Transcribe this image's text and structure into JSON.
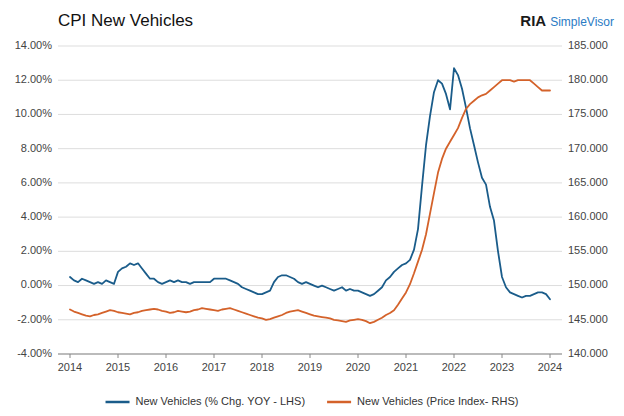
{
  "chart_data": {
    "type": "line",
    "title": "CPI New Vehicles",
    "annotations": [
      "RIA",
      "SimpleVisor"
    ],
    "x": [
      2014.0,
      2014.083,
      2014.167,
      2014.25,
      2014.333,
      2014.417,
      2014.5,
      2014.583,
      2014.667,
      2014.75,
      2014.833,
      2014.917,
      2015.0,
      2015.083,
      2015.167,
      2015.25,
      2015.333,
      2015.417,
      2015.5,
      2015.583,
      2015.667,
      2015.75,
      2015.833,
      2015.917,
      2016.0,
      2016.083,
      2016.167,
      2016.25,
      2016.333,
      2016.417,
      2016.5,
      2016.583,
      2016.667,
      2016.75,
      2016.833,
      2016.917,
      2017.0,
      2017.083,
      2017.167,
      2017.25,
      2017.333,
      2017.417,
      2017.5,
      2017.583,
      2017.667,
      2017.75,
      2017.833,
      2017.917,
      2018.0,
      2018.083,
      2018.167,
      2018.25,
      2018.333,
      2018.417,
      2018.5,
      2018.583,
      2018.667,
      2018.75,
      2018.833,
      2018.917,
      2019.0,
      2019.083,
      2019.167,
      2019.25,
      2019.333,
      2019.417,
      2019.5,
      2019.583,
      2019.667,
      2019.75,
      2019.833,
      2019.917,
      2020.0,
      2020.083,
      2020.167,
      2020.25,
      2020.333,
      2020.417,
      2020.5,
      2020.583,
      2020.667,
      2020.75,
      2020.833,
      2020.917,
      2021.0,
      2021.083,
      2021.167,
      2021.25,
      2021.333,
      2021.417,
      2021.5,
      2021.583,
      2021.667,
      2021.75,
      2021.833,
      2021.917,
      2022.0,
      2022.083,
      2022.167,
      2022.25,
      2022.333,
      2022.417,
      2022.5,
      2022.583,
      2022.667,
      2022.75,
      2022.833,
      2022.917,
      2023.0,
      2023.083,
      2023.167,
      2023.25,
      2023.333,
      2023.417,
      2023.5,
      2023.583,
      2023.667,
      2023.75,
      2023.833,
      2023.917,
      2024.0
    ],
    "series": [
      {
        "name": "New Vehicles (% Chg. YOY - LHS)",
        "color": "#1a5c8a",
        "values": [
          0.005,
          0.003,
          0.002,
          0.004,
          0.003,
          0.002,
          0.001,
          0.002,
          0.001,
          0.003,
          0.002,
          0.001,
          0.008,
          0.01,
          0.011,
          0.013,
          0.012,
          0.013,
          0.01,
          0.007,
          0.004,
          0.004,
          0.002,
          0.001,
          0.002,
          0.003,
          0.002,
          0.003,
          0.002,
          0.002,
          0.001,
          0.002,
          0.002,
          0.002,
          0.002,
          0.002,
          0.004,
          0.004,
          0.004,
          0.004,
          0.003,
          0.002,
          0.001,
          -0.001,
          -0.002,
          -0.003,
          -0.004,
          -0.005,
          -0.005,
          -0.004,
          -0.003,
          0.002,
          0.005,
          0.006,
          0.006,
          0.005,
          0.004,
          0.002,
          0.001,
          0.002,
          0.001,
          0.0,
          -0.001,
          0.0,
          -0.001,
          -0.002,
          -0.003,
          -0.002,
          -0.001,
          -0.003,
          -0.002,
          -0.003,
          -0.003,
          -0.004,
          -0.005,
          -0.006,
          -0.005,
          -0.003,
          -0.001,
          0.003,
          0.005,
          0.008,
          0.01,
          0.012,
          0.013,
          0.015,
          0.021,
          0.033,
          0.058,
          0.082,
          0.099,
          0.113,
          0.12,
          0.118,
          0.112,
          0.103,
          0.127,
          0.123,
          0.115,
          0.104,
          0.092,
          0.082,
          0.072,
          0.063,
          0.059,
          0.046,
          0.038,
          0.02,
          0.005,
          -0.001,
          -0.004,
          -0.005,
          -0.006,
          -0.007,
          -0.006,
          -0.006,
          -0.005,
          -0.004,
          -0.004,
          -0.005,
          -0.008
        ]
      },
      {
        "name": "New Vehicles (Price Index- RHS)",
        "color": "#d4622a",
        "axis": "y2",
        "values": [
          146.5,
          146.2,
          146.0,
          145.8,
          145.6,
          145.5,
          145.7,
          145.8,
          146.0,
          146.2,
          146.4,
          146.3,
          146.1,
          146.0,
          145.9,
          145.8,
          146.0,
          146.1,
          146.3,
          146.4,
          146.5,
          146.6,
          146.5,
          146.3,
          146.2,
          146.0,
          146.1,
          146.3,
          146.2,
          146.1,
          146.2,
          146.4,
          146.5,
          146.7,
          146.6,
          146.5,
          146.4,
          146.3,
          146.5,
          146.6,
          146.7,
          146.5,
          146.3,
          146.1,
          145.9,
          145.7,
          145.5,
          145.3,
          145.2,
          145.0,
          145.1,
          145.3,
          145.5,
          145.7,
          146.0,
          146.2,
          146.3,
          146.4,
          146.2,
          146.0,
          145.8,
          145.6,
          145.5,
          145.4,
          145.3,
          145.2,
          145.0,
          144.9,
          144.8,
          144.7,
          144.9,
          145.0,
          145.1,
          145.0,
          144.8,
          144.5,
          144.7,
          145.0,
          145.3,
          145.7,
          146.0,
          146.4,
          147.2,
          148.1,
          149.0,
          150.2,
          151.8,
          153.5,
          155.2,
          157.5,
          160.5,
          163.5,
          166.5,
          168.5,
          170.0,
          171.0,
          172.0,
          173.0,
          174.5,
          175.8,
          176.5,
          177.0,
          177.5,
          177.8,
          178.0,
          178.5,
          179.0,
          179.5,
          180.0,
          180.0,
          180.0,
          179.8,
          180.0,
          180.0,
          180.0,
          180.0,
          179.5,
          179.0,
          178.5,
          178.5,
          178.5
        ]
      }
    ],
    "xlim": [
      2013.75,
      2024.25
    ],
    "xticks": [
      2014,
      2015,
      2016,
      2017,
      2018,
      2019,
      2020,
      2021,
      2022,
      2023,
      2024
    ],
    "ylim": [
      -0.04,
      0.14
    ],
    "yticks": [
      {
        "value": -0.04,
        "label": "-4.00%"
      },
      {
        "value": -0.02,
        "label": "-2.00%"
      },
      {
        "value": 0.0,
        "label": "0.00%"
      },
      {
        "value": 0.02,
        "label": "2.00%"
      },
      {
        "value": 0.04,
        "label": "4.00%"
      },
      {
        "value": 0.06,
        "label": "6.00%"
      },
      {
        "value": 0.08,
        "label": "8.00%"
      },
      {
        "value": 0.1,
        "label": "10.00%"
      },
      {
        "value": 0.12,
        "label": "12.00%"
      },
      {
        "value": 0.14,
        "label": "14.00%"
      }
    ],
    "y2lim": [
      140.0,
      185.0
    ],
    "y2ticks": [
      {
        "value": 140.0,
        "label": "140.000"
      },
      {
        "value": 145.0,
        "label": "145.000"
      },
      {
        "value": 150.0,
        "label": "150.000"
      },
      {
        "value": 155.0,
        "label": "155.000"
      },
      {
        "value": 160.0,
        "label": "160.000"
      },
      {
        "value": 165.0,
        "label": "165.000"
      },
      {
        "value": 170.0,
        "label": "170.000"
      },
      {
        "value": 175.0,
        "label": "175.000"
      },
      {
        "value": 180.0,
        "label": "180.000"
      },
      {
        "value": 185.0,
        "label": "185.000"
      }
    ],
    "grid": true,
    "legend": "bottom"
  }
}
